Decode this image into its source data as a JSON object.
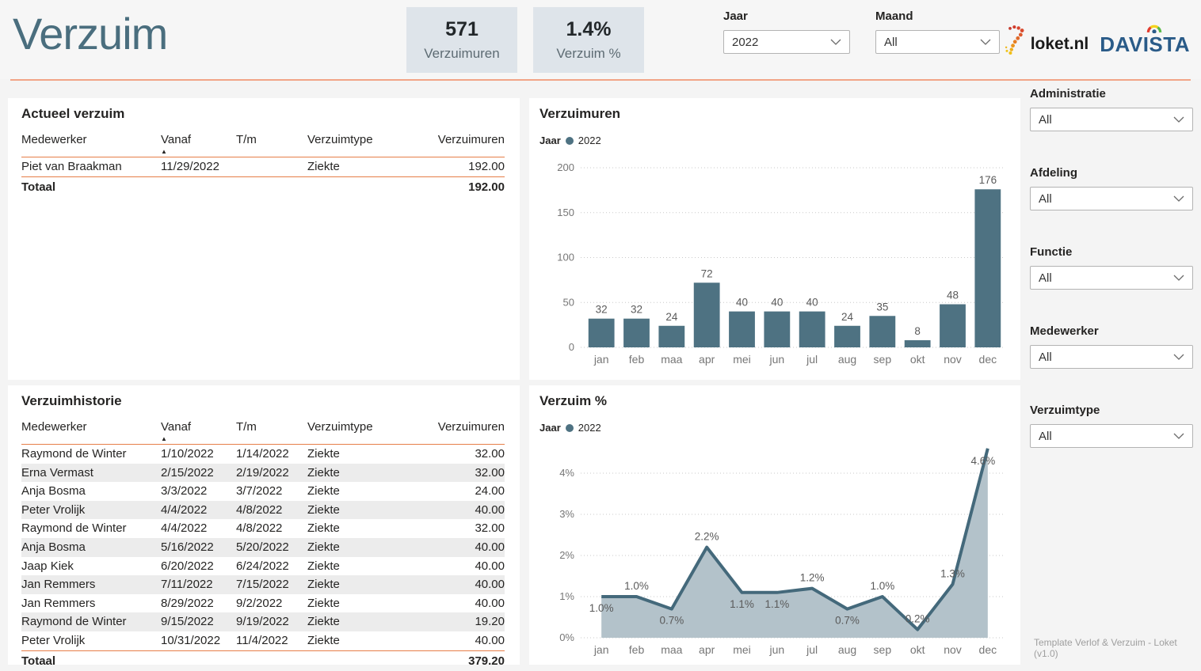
{
  "header": {
    "title": "Verzuim",
    "kpis": [
      {
        "value": "571",
        "label": "Verzuimuren"
      },
      {
        "value": "1.4%",
        "label": "Verzuim %"
      }
    ],
    "filters": [
      {
        "label": "Jaar",
        "value": "2022"
      },
      {
        "label": "Maand",
        "value": "All"
      }
    ],
    "logos": {
      "loket": "loket.nl",
      "davista": "DAVISTA"
    }
  },
  "colors": {
    "accent": "#4e7282",
    "title_blue": "#4a6e7e",
    "divider_orange": "#f2a487",
    "table_line_orange": "#e67e48",
    "kpi_bg": "#dee4ea",
    "stripe_gray": "#ececec",
    "line_stroke": "#44697b",
    "area_fill": "#b3c2ca",
    "axis_gray": "#767676"
  },
  "actueel": {
    "title": "Actueel verzuim",
    "columns": [
      "Medewerker",
      "Vanaf",
      "T/m",
      "Verzuimtype",
      "Verzuimuren"
    ],
    "sort_column": "Vanaf",
    "rows": [
      [
        "Piet van Braakman",
        "11/29/2022",
        "",
        "Ziekte",
        "192.00"
      ]
    ],
    "total_label": "Totaal",
    "total_value": "192.00"
  },
  "historie": {
    "title": "Verzuimhistorie",
    "columns": [
      "Medewerker",
      "Vanaf",
      "T/m",
      "Verzuimtype",
      "Verzuimuren"
    ],
    "sort_column": "Vanaf",
    "rows": [
      [
        "Raymond de Winter",
        "1/10/2022",
        "1/14/2022",
        "Ziekte",
        "32.00"
      ],
      [
        "Erna Vermast",
        "2/15/2022",
        "2/19/2022",
        "Ziekte",
        "32.00"
      ],
      [
        "Anja Bosma",
        "3/3/2022",
        "3/7/2022",
        "Ziekte",
        "24.00"
      ],
      [
        "Peter Vrolijk",
        "4/4/2022",
        "4/8/2022",
        "Ziekte",
        "40.00"
      ],
      [
        "Raymond de Winter",
        "4/4/2022",
        "4/8/2022",
        "Ziekte",
        "32.00"
      ],
      [
        "Anja Bosma",
        "5/16/2022",
        "5/20/2022",
        "Ziekte",
        "40.00"
      ],
      [
        "Jaap Kiek",
        "6/20/2022",
        "6/24/2022",
        "Ziekte",
        "40.00"
      ],
      [
        "Jan Remmers",
        "7/11/2022",
        "7/15/2022",
        "Ziekte",
        "40.00"
      ],
      [
        "Jan Remmers",
        "8/29/2022",
        "9/2/2022",
        "Ziekte",
        "40.00"
      ],
      [
        "Raymond de Winter",
        "9/15/2022",
        "9/19/2022",
        "Ziekte",
        "19.20"
      ],
      [
        "Peter Vrolijk",
        "10/31/2022",
        "11/4/2022",
        "Ziekte",
        "40.00"
      ]
    ],
    "total_label": "Totaal",
    "total_value": "379.20"
  },
  "chart_data": [
    {
      "type": "bar",
      "title": "Verzuimuren",
      "legend": {
        "label": "Jaar",
        "series": "2022",
        "position": "top-left",
        "dot_color": "#4e7282"
      },
      "categories": [
        "jan",
        "feb",
        "maa",
        "apr",
        "mei",
        "jun",
        "jul",
        "aug",
        "sep",
        "okt",
        "nov",
        "dec"
      ],
      "values": [
        32,
        32,
        24,
        72,
        40,
        40,
        40,
        24,
        35,
        8,
        48,
        176
      ],
      "xlabel": "",
      "ylabel": "",
      "ylim": [
        0,
        200
      ],
      "yticks": [
        0,
        50,
        100,
        150,
        200
      ],
      "ytick_labels": [
        "0",
        "50",
        "100",
        "150",
        "200"
      ],
      "grid": true,
      "bar_color": "#4e7282"
    },
    {
      "type": "area",
      "title": "Verzuim %",
      "legend": {
        "label": "Jaar",
        "series": "2022",
        "position": "top-left",
        "dot_color": "#4e7282"
      },
      "categories": [
        "jan",
        "feb",
        "maa",
        "apr",
        "mei",
        "jun",
        "jul",
        "aug",
        "sep",
        "okt",
        "nov",
        "dec"
      ],
      "values": [
        1.0,
        1.0,
        0.7,
        2.2,
        1.1,
        1.1,
        1.2,
        0.7,
        1.0,
        0.2,
        1.3,
        4.6
      ],
      "point_labels": [
        "1.0%",
        "1.0%",
        "0.7%",
        "2.2%",
        "1.1%",
        "1.1%",
        "1.2%",
        "0.7%",
        "1.0%",
        "0.2%",
        "1.3%",
        "4.6%"
      ],
      "label_side": [
        "below",
        "above",
        "below",
        "above",
        "below",
        "below",
        "above",
        "below",
        "above",
        "above",
        "above",
        "peak"
      ],
      "xlabel": "",
      "ylabel": "",
      "ylim": [
        0,
        4.8
      ],
      "yticks": [
        0,
        1,
        2,
        3,
        4
      ],
      "ytick_labels": [
        "0%",
        "1%",
        "2%",
        "3%",
        "4%"
      ],
      "grid": true,
      "line_color": "#44697b",
      "fill_color": "#b3c2ca"
    }
  ],
  "sidebar": {
    "filters": [
      {
        "label": "Administratie",
        "value": "All"
      },
      {
        "label": "Afdeling",
        "value": "All"
      },
      {
        "label": "Functie",
        "value": "All"
      },
      {
        "label": "Medewerker",
        "value": "All"
      },
      {
        "label": "Verzuimtype",
        "value": "All"
      }
    ],
    "footer": "Template Verlof & Verzuim - Loket (v1.0)"
  }
}
